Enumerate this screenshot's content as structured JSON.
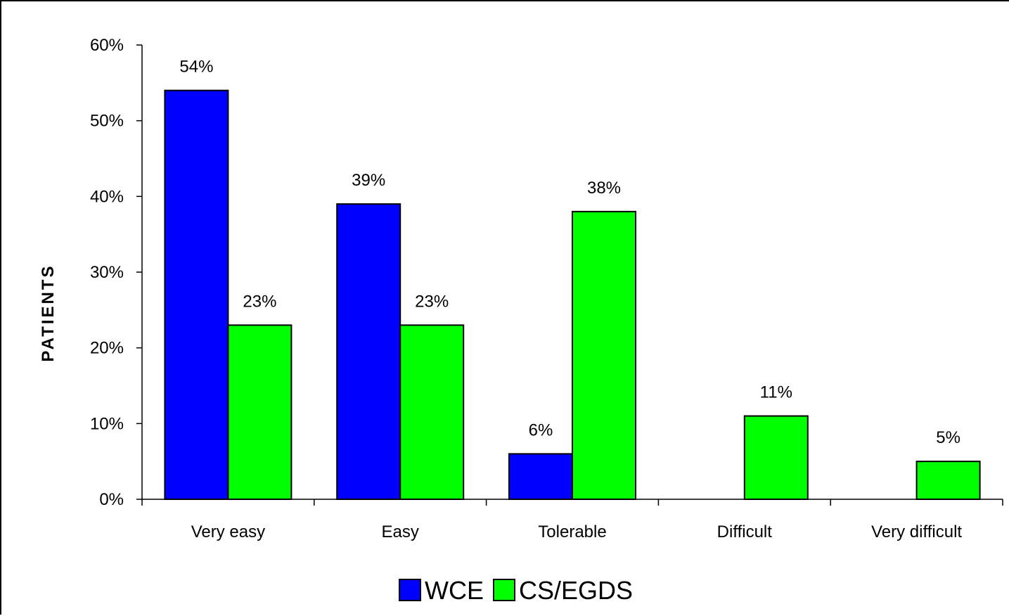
{
  "chart_data": {
    "type": "bar",
    "ylabel": "PATIENTS",
    "xlabel": "",
    "title": "",
    "categories": [
      "Very easy",
      "Easy",
      "Tolerable",
      "Difficult",
      "Very difficult"
    ],
    "series": [
      {
        "name": "WCE",
        "color": "#0000ff",
        "values": [
          54,
          39,
          6,
          null,
          null
        ],
        "labels": [
          "54%",
          "39%",
          "6%",
          "",
          ""
        ]
      },
      {
        "name": "CS/EGDS",
        "color": "#00ff00",
        "values": [
          23,
          23,
          38,
          11,
          5
        ],
        "labels": [
          "23%",
          "23%",
          "38%",
          "11%",
          "5%"
        ]
      }
    ],
    "ylim": [
      0,
      60
    ],
    "yticks": [
      0,
      10,
      20,
      30,
      40,
      50,
      60
    ],
    "ytick_labels": [
      "0%",
      "10%",
      "20%",
      "30%",
      "40%",
      "50%",
      "60%"
    ],
    "grid": false,
    "legend_position": "bottom"
  }
}
